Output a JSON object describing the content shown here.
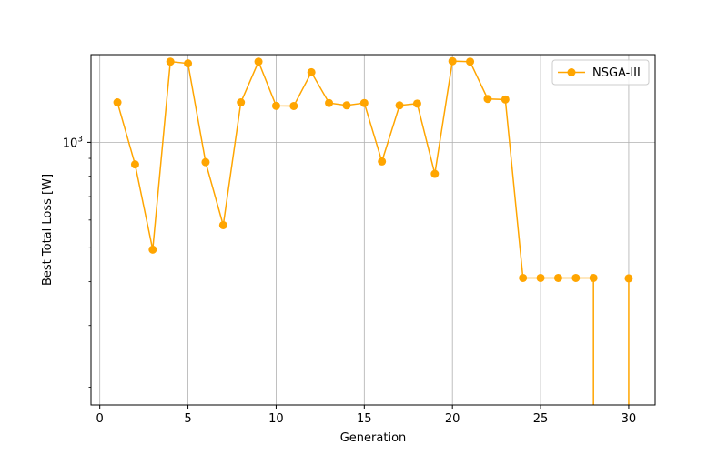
{
  "chart_data": {
    "type": "line",
    "title": "",
    "xlabel": "Generation",
    "ylabel": "Best Total Loss [W]",
    "xlim": [
      -0.5,
      31.5
    ],
    "ylim": [
      178,
      1780
    ],
    "y_scale": "log",
    "x_ticks": [
      0,
      5,
      10,
      15,
      20,
      25,
      30
    ],
    "x_tick_labels": [
      "0",
      "5",
      "10",
      "15",
      "20",
      "25",
      "30"
    ],
    "y_major_ticks": [
      1000
    ],
    "y_major_tick_labels": [
      "10^3"
    ],
    "y_minor_ticks": [
      200,
      300,
      400,
      500,
      600,
      700,
      800,
      900
    ],
    "grid": true,
    "legend": {
      "placement": "upper right"
    },
    "series": [
      {
        "name": "NSGA-III",
        "color": "#FFA500",
        "marker": "circle",
        "points": [
          {
            "x": 1,
            "y": 1300
          },
          {
            "x": 2,
            "y": 865
          },
          {
            "x": 3,
            "y": 494
          },
          {
            "x": 4,
            "y": 1700
          },
          {
            "x": 5,
            "y": 1680
          },
          {
            "x": 6,
            "y": 878
          },
          {
            "x": 7,
            "y": 580
          },
          {
            "x": 8,
            "y": 1300
          },
          {
            "x": 9,
            "y": 1700
          },
          {
            "x": 10,
            "y": 1271
          },
          {
            "x": 11,
            "y": 1270
          },
          {
            "x": 12,
            "y": 1585
          },
          {
            "x": 13,
            "y": 1295
          },
          {
            "x": 14,
            "y": 1275
          },
          {
            "x": 15,
            "y": 1295
          },
          {
            "x": 16,
            "y": 882
          },
          {
            "x": 17,
            "y": 1275
          },
          {
            "x": 18,
            "y": 1290
          },
          {
            "x": 19,
            "y": 813
          },
          {
            "x": 20,
            "y": 1705
          },
          {
            "x": 21,
            "y": 1700
          },
          {
            "x": 22,
            "y": 1330
          },
          {
            "x": 23,
            "y": 1325
          },
          {
            "x": 24,
            "y": 410
          },
          {
            "x": 25,
            "y": 410
          },
          {
            "x": 26,
            "y": 410
          },
          {
            "x": 27,
            "y": 410
          },
          {
            "x": 28,
            "y": 410
          },
          {
            "x": 29,
            "y": null
          },
          {
            "x": 30,
            "y": 409
          }
        ]
      }
    ]
  }
}
